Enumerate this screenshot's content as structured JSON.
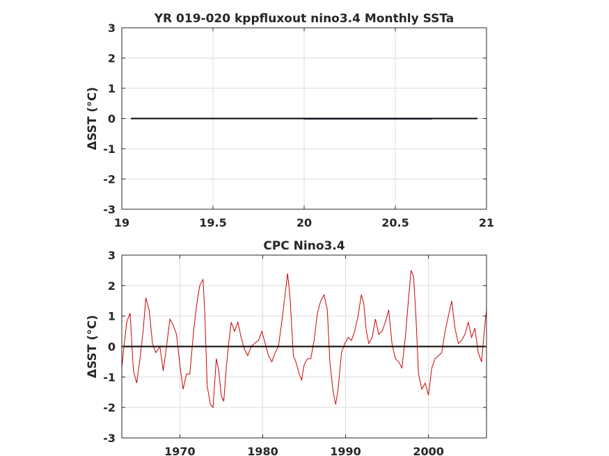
{
  "chart_data": [
    {
      "type": "line",
      "title": "YR 019-020 kppfluxout nino3.4 Monthly SSTa",
      "xlabel": "",
      "ylabel": "ΔSST (°C)",
      "xlim": [
        19,
        21
      ],
      "ylim": [
        -3,
        3
      ],
      "xticks": [
        "19",
        "19.5",
        "20",
        "20.5",
        "21"
      ],
      "xtick_values": [
        19,
        19.5,
        20,
        20.5,
        21
      ],
      "yticks": [
        "-3",
        "-2",
        "-1",
        "0",
        "1",
        "2",
        "3"
      ],
      "ytick_values": [
        -3,
        -2,
        -1,
        0,
        1,
        2,
        3
      ],
      "grid": true,
      "series": [
        {
          "color": "#0d2a5c",
          "x": [
            20.0,
            20.7
          ],
          "y": [
            -0.01,
            -0.01
          ]
        },
        {
          "color": "#000000",
          "x": [
            19.05,
            20.95
          ],
          "y": [
            0,
            0
          ]
        }
      ]
    },
    {
      "type": "line",
      "title": "CPC Nino3.4",
      "xlabel": "",
      "ylabel": "ΔSST (°C)",
      "xlim": [
        1963,
        2007
      ],
      "ylim": [
        -3,
        3
      ],
      "xticks": [
        "1970",
        "1980",
        "1990",
        "2000"
      ],
      "xtick_values": [
        1970,
        1980,
        1990,
        2000
      ],
      "yticks": [
        "-3",
        "-2",
        "-1",
        "0",
        "1",
        "2",
        "3"
      ],
      "ytick_values": [
        -3,
        -2,
        -1,
        0,
        1,
        2,
        3
      ],
      "grid": true,
      "baseline": 0,
      "series": [
        {
          "color": "#cc0000",
          "x": [
            1963.0,
            1963.3,
            1963.6,
            1964.0,
            1964.4,
            1964.8,
            1965.2,
            1965.6,
            1965.9,
            1966.3,
            1966.7,
            1967.1,
            1967.6,
            1968.0,
            1968.4,
            1968.8,
            1969.2,
            1969.6,
            1970.0,
            1970.4,
            1970.8,
            1971.2,
            1971.7,
            1972.0,
            1972.4,
            1972.8,
            1973.0,
            1973.3,
            1973.7,
            1974.0,
            1974.4,
            1974.7,
            1975.0,
            1975.3,
            1975.6,
            1975.9,
            1976.2,
            1976.6,
            1977.0,
            1977.4,
            1977.8,
            1978.2,
            1978.6,
            1979.0,
            1979.5,
            1979.9,
            1980.3,
            1980.7,
            1981.1,
            1981.5,
            1981.9,
            1982.3,
            1982.7,
            1983.0,
            1983.3,
            1983.7,
            1984.0,
            1984.4,
            1984.7,
            1985.0,
            1985.4,
            1985.8,
            1986.2,
            1986.6,
            1987.0,
            1987.4,
            1987.8,
            1988.1,
            1988.5,
            1988.8,
            1989.1,
            1989.5,
            1989.9,
            1990.3,
            1990.7,
            1991.1,
            1991.5,
            1991.9,
            1992.2,
            1992.5,
            1992.8,
            1993.2,
            1993.6,
            1994.0,
            1994.4,
            1994.8,
            1995.2,
            1995.6,
            1996.0,
            1996.4,
            1996.8,
            1997.2,
            1997.6,
            1997.9,
            1998.2,
            1998.5,
            1998.8,
            1999.2,
            1999.6,
            2000.0,
            2000.4,
            2000.8,
            2001.2,
            2001.6,
            2002.0,
            2002.4,
            2002.8,
            2003.2,
            2003.6,
            2004.0,
            2004.4,
            2004.8,
            2005.2,
            2005.6,
            2006.0,
            2006.4,
            2006.8,
            2007.0
          ],
          "y": [
            -0.7,
            0.1,
            0.8,
            1.1,
            -0.8,
            -1.2,
            -0.4,
            0.6,
            1.6,
            1.2,
            0.1,
            -0.2,
            0.0,
            -0.8,
            0.0,
            0.9,
            0.7,
            0.4,
            -0.6,
            -1.4,
            -0.9,
            -0.9,
            0.6,
            1.3,
            2.0,
            2.2,
            1.2,
            -1.3,
            -1.9,
            -2.0,
            -0.4,
            -0.8,
            -1.6,
            -1.8,
            -0.7,
            0.1,
            0.8,
            0.5,
            0.8,
            0.3,
            -0.1,
            -0.3,
            0.0,
            0.1,
            0.2,
            0.5,
            0.1,
            -0.3,
            -0.5,
            -0.2,
            0.0,
            0.8,
            1.7,
            2.4,
            1.6,
            -0.3,
            -0.5,
            -0.9,
            -1.1,
            -0.6,
            -0.4,
            -0.4,
            0.2,
            1.1,
            1.5,
            1.7,
            1.2,
            -0.5,
            -1.5,
            -1.9,
            -1.4,
            -0.2,
            0.1,
            0.3,
            0.2,
            0.5,
            1.0,
            1.7,
            1.4,
            0.5,
            0.1,
            0.3,
            0.9,
            0.4,
            0.5,
            0.8,
            1.2,
            0.1,
            -0.4,
            -0.5,
            -0.7,
            0.3,
            1.6,
            2.5,
            2.3,
            0.9,
            -0.9,
            -1.4,
            -1.2,
            -1.6,
            -0.7,
            -0.4,
            -0.3,
            -0.2,
            0.5,
            1.0,
            1.5,
            0.6,
            0.1,
            0.2,
            0.4,
            0.8,
            0.3,
            0.6,
            -0.2,
            -0.5,
            0.7,
            1.2
          ]
        },
        {
          "color": "#000000",
          "x": [
            1963,
            2007
          ],
          "y": [
            0,
            0
          ]
        }
      ]
    }
  ]
}
